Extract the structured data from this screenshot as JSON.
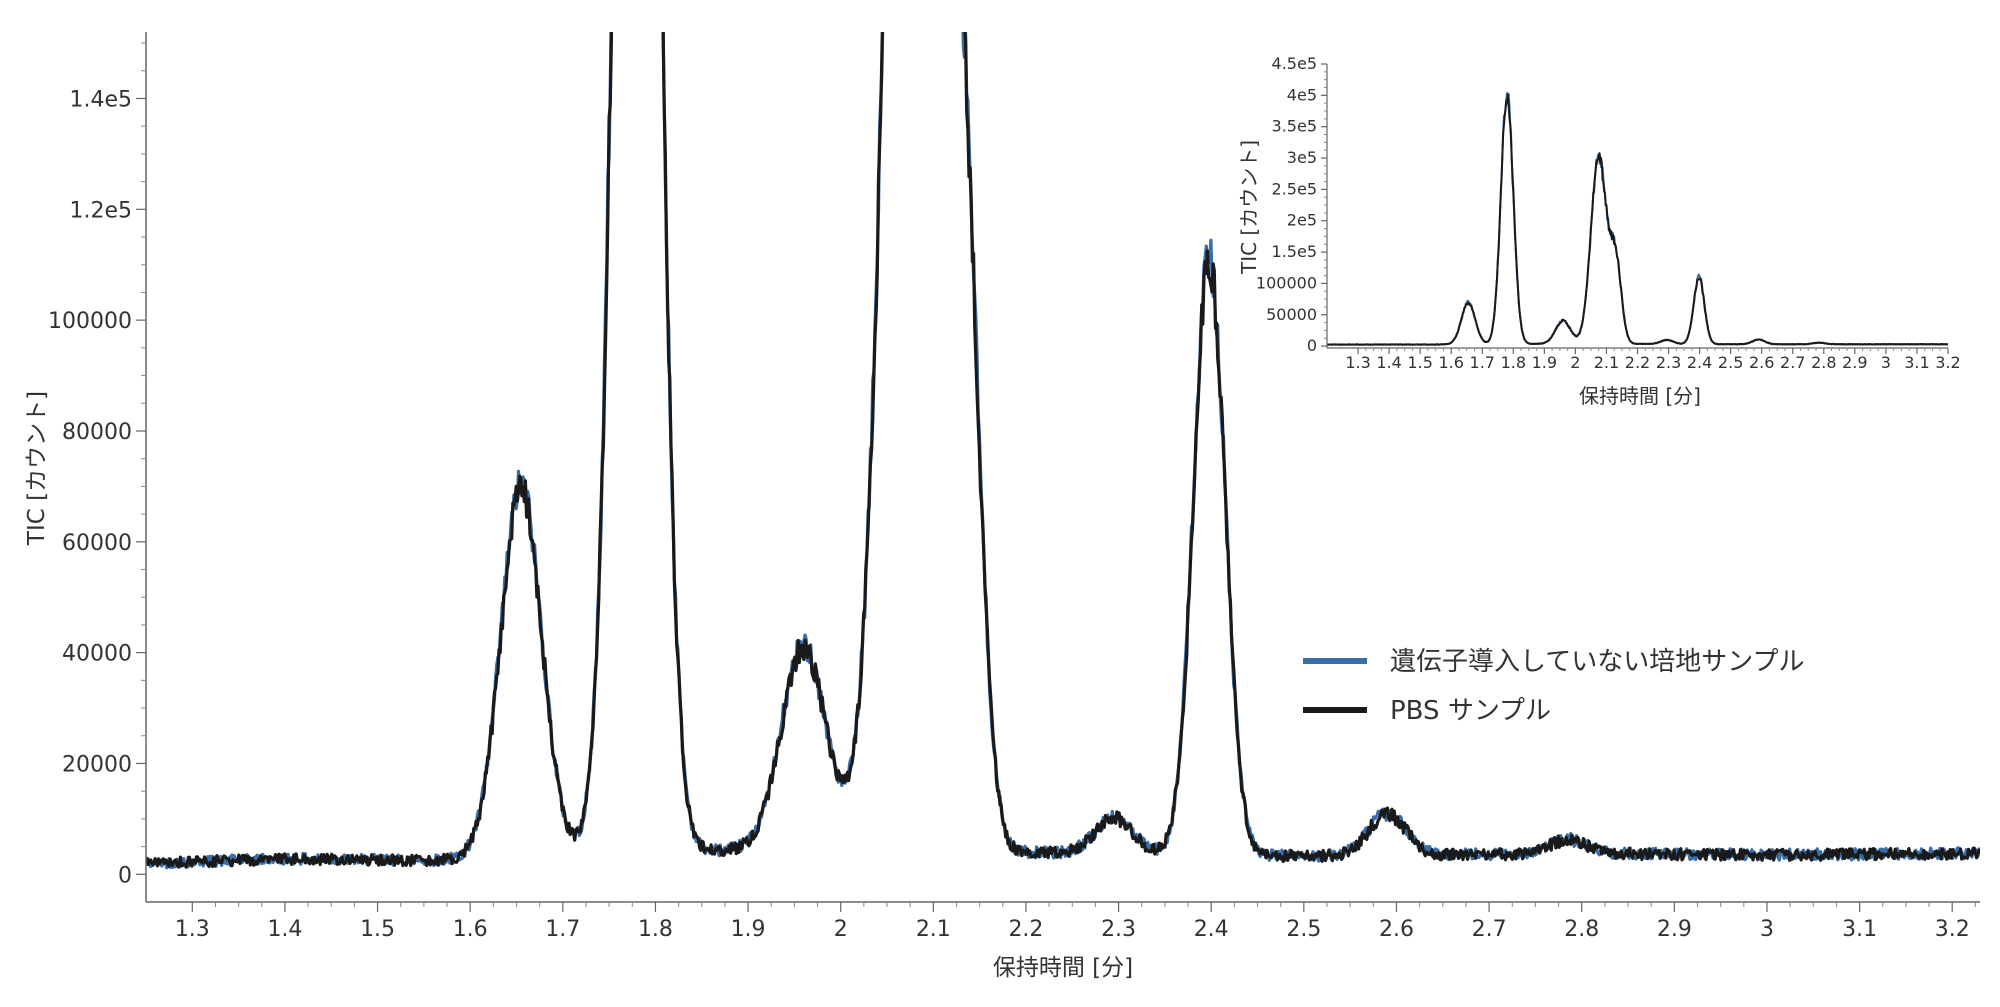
{
  "chart_data": [
    {
      "type": "line",
      "xlabel": "保持時間 [分]",
      "ylabel": "TIC [カウント]",
      "xlim": [
        1.25,
        3.23
      ],
      "ylim": [
        -5000,
        152000
      ],
      "x_ticks": [
        1.3,
        1.4,
        1.5,
        1.6,
        1.7,
        1.8,
        1.9,
        2.0,
        2.1,
        2.2,
        2.3,
        2.4,
        2.5,
        2.6,
        2.7,
        2.8,
        2.9,
        3.0,
        3.1,
        3.2
      ],
      "x_tick_labels": [
        "1.3",
        "1.4",
        "1.5",
        "1.6",
        "1.7",
        "1.8",
        "1.9",
        "2",
        "2.1",
        "2.2",
        "2.3",
        "2.4",
        "2.5",
        "2.6",
        "2.7",
        "2.8",
        "2.9",
        "3",
        "3.1",
        "3.2"
      ],
      "y_ticks": [
        0,
        20000,
        40000,
        60000,
        80000,
        100000,
        120000,
        140000
      ],
      "y_tick_labels": [
        "0",
        "20000",
        "40000",
        "60000",
        "80000",
        "100000",
        "1.2e5",
        "1.4e5"
      ],
      "grid": false,
      "legend_position": "right",
      "series": [
        {
          "name": "遺伝子導入していない培地サンプル",
          "color": "#3a6ea8"
        },
        {
          "name": "PBS サンプル",
          "color": "#1a1a1a"
        }
      ],
      "baseline": [
        [
          1.25,
          2000
        ],
        [
          1.4,
          2800
        ],
        [
          1.55,
          2500
        ],
        [
          1.7,
          3500
        ],
        [
          1.9,
          4500
        ],
        [
          2.2,
          4000
        ],
        [
          2.5,
          3300
        ],
        [
          2.8,
          3800
        ],
        [
          3.0,
          3500
        ],
        [
          3.23,
          3800
        ]
      ],
      "peaks": [
        {
          "rt": 1.655,
          "height": 67000,
          "width": 0.022
        },
        {
          "rt": 1.78,
          "height": 400000,
          "width": 0.02
        },
        {
          "rt": 1.96,
          "height": 37000,
          "width": 0.024
        },
        {
          "rt": 2.075,
          "height": 300000,
          "width": 0.025
        },
        {
          "rt": 2.13,
          "height": 130000,
          "width": 0.018
        },
        {
          "rt": 2.295,
          "height": 6500,
          "width": 0.02
        },
        {
          "rt": 2.398,
          "height": 108000,
          "width": 0.017
        },
        {
          "rt": 2.59,
          "height": 7500,
          "width": 0.02
        },
        {
          "rt": 2.785,
          "height": 2500,
          "width": 0.02
        }
      ],
      "clip_top": true
    },
    {
      "type": "line",
      "xlabel": "保持時間 [分]",
      "ylabel": "TIC [カウント]",
      "xlim": [
        1.2,
        3.2
      ],
      "ylim": [
        -3000,
        450000
      ],
      "x_ticks": [
        1.3,
        1.4,
        1.5,
        1.6,
        1.7,
        1.8,
        1.9,
        2.0,
        2.1,
        2.2,
        2.3,
        2.4,
        2.5,
        2.6,
        2.7,
        2.8,
        2.9,
        3.0,
        3.1,
        3.2
      ],
      "x_tick_labels": [
        "1.3",
        "1.4",
        "1.5",
        "1.6",
        "1.7",
        "1.8",
        "1.9",
        "2",
        "2.1",
        "2.2",
        "2.3",
        "2.4",
        "2.5",
        "2.6",
        "2.7",
        "2.8",
        "2.9",
        "3",
        "3.1",
        "3.2"
      ],
      "y_ticks": [
        0,
        50000,
        100000,
        150000,
        200000,
        250000,
        300000,
        350000,
        400000,
        450000
      ],
      "y_tick_labels": [
        "0",
        "50000",
        "100000",
        "1.5e5",
        "2e5",
        "2.5e5",
        "3e5",
        "3.5e5",
        "4e5",
        "4.5e5"
      ],
      "grid": false,
      "series": [
        {
          "name": "遺伝子導入していない培地サンプル",
          "color": "#3a6ea8"
        },
        {
          "name": "PBS サンプル",
          "color": "#1a1a1a"
        }
      ],
      "baseline": [
        [
          1.2,
          2500
        ],
        [
          1.5,
          2500
        ],
        [
          1.7,
          3000
        ],
        [
          2.0,
          4000
        ],
        [
          2.5,
          3000
        ],
        [
          3.2,
          3000
        ]
      ],
      "peaks": [
        {
          "rt": 1.655,
          "height": 67000,
          "width": 0.022
        },
        {
          "rt": 1.78,
          "height": 400000,
          "width": 0.02
        },
        {
          "rt": 1.96,
          "height": 37000,
          "width": 0.024
        },
        {
          "rt": 2.075,
          "height": 300000,
          "width": 0.025
        },
        {
          "rt": 2.13,
          "height": 130000,
          "width": 0.018
        },
        {
          "rt": 2.295,
          "height": 6500,
          "width": 0.02
        },
        {
          "rt": 2.398,
          "height": 108000,
          "width": 0.017
        },
        {
          "rt": 2.59,
          "height": 7500,
          "width": 0.02
        },
        {
          "rt": 2.785,
          "height": 2500,
          "width": 0.02
        }
      ],
      "clip_top": false
    }
  ]
}
